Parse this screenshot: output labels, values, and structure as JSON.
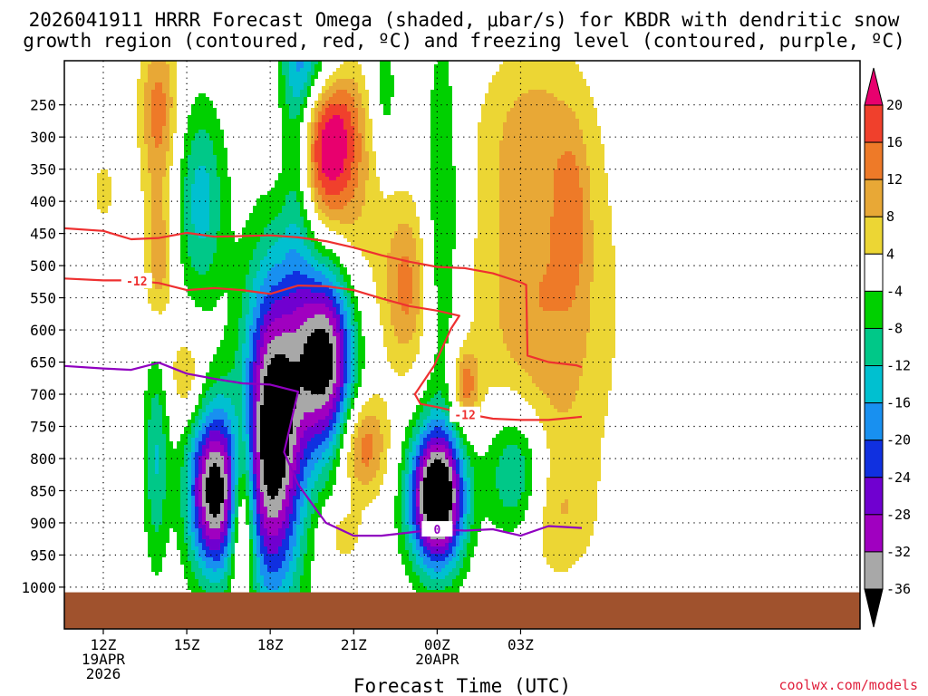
{
  "chart_data": {
    "type": "heatmap",
    "title_lines": [
      "2026041911 HRRR Forecast Omega (shaded, μbar/s) for KBDR with dendritic snow",
      "growth region (contoured, red, ºC) and freezing level (contoured, purple, ºC)"
    ],
    "xlabel": "Forecast Time (UTC)",
    "credit": "coolwx.com/models",
    "x_range_hours": [
      10.6,
      39.2
    ],
    "y_range_hPa": [
      180,
      1025
    ],
    "x_ticks": [
      {
        "hour": 12,
        "lines": [
          "12Z",
          "19APR",
          "2026"
        ]
      },
      {
        "hour": 15,
        "lines": [
          "15Z"
        ]
      },
      {
        "hour": 18,
        "lines": [
          "18Z"
        ]
      },
      {
        "hour": 21,
        "lines": [
          "21Z"
        ]
      },
      {
        "hour": 24,
        "lines": [
          "00Z",
          "20APR"
        ]
      },
      {
        "hour": 27,
        "lines": [
          "03Z"
        ]
      }
    ],
    "y_ticks": [
      250,
      300,
      350,
      400,
      450,
      500,
      550,
      600,
      650,
      700,
      750,
      800,
      850,
      900,
      950,
      1000
    ],
    "surface_hPa": 1008,
    "colorbar": {
      "labels": [
        "20",
        "16",
        "12",
        "8",
        "4",
        "-4",
        "-8",
        "-12",
        "-16",
        "-20",
        "-24",
        "-28",
        "-32",
        "-36"
      ],
      "bins": [
        {
          "min": 20,
          "max": 24,
          "color": "#e8006e"
        },
        {
          "min": 16,
          "max": 20,
          "color": "#f0402c"
        },
        {
          "min": 12,
          "max": 16,
          "color": "#ee7a28"
        },
        {
          "min": 8,
          "max": 12,
          "color": "#e8a836"
        },
        {
          "min": 4,
          "max": 8,
          "color": "#ecd634"
        },
        {
          "min": -4,
          "max": 4,
          "color": "#ffffff"
        },
        {
          "min": -8,
          "max": -4,
          "color": "#00d000"
        },
        {
          "min": -12,
          "max": -8,
          "color": "#00c888"
        },
        {
          "min": -16,
          "max": -12,
          "color": "#00c0d0"
        },
        {
          "min": -20,
          "max": -16,
          "color": "#1890f0"
        },
        {
          "min": -24,
          "max": -20,
          "color": "#1030e0"
        },
        {
          "min": -28,
          "max": -24,
          "color": "#7000d0"
        },
        {
          "min": -32,
          "max": -28,
          "color": "#a000c0"
        },
        {
          "min": -36,
          "max": -32,
          "color": "#a8a8a8"
        },
        {
          "min": -40,
          "max": -36,
          "color": "#000000"
        }
      ]
    },
    "omega_cells": [
      {
        "t": 14.0,
        "p": 260,
        "rt": 0.7,
        "rp": 130,
        "peak": 14
      },
      {
        "t": 14.0,
        "p": 490,
        "rt": 0.55,
        "rp": 110,
        "peak": 11
      },
      {
        "t": 12.0,
        "p": 385,
        "rt": 0.45,
        "rp": 55,
        "peak": 6
      },
      {
        "t": 15.0,
        "p": 675,
        "rt": 0.6,
        "rp": 70,
        "peak": 9
      },
      {
        "t": 15.5,
        "p": 400,
        "rt": 0.9,
        "rp": 150,
        "peak": -14
      },
      {
        "t": 13.9,
        "p": 800,
        "rt": 0.45,
        "rp": 170,
        "peak": -12
      },
      {
        "t": 16.0,
        "p": 850,
        "rt": 0.95,
        "rp": 130,
        "peak": -39
      },
      {
        "t": 17.0,
        "p": 880,
        "rt": 0.45,
        "rp": 150,
        "peak": 22
      },
      {
        "t": 18.1,
        "p": 760,
        "rt": 1.1,
        "rp": 250,
        "peak": -42
      },
      {
        "t": 19.0,
        "p": 300,
        "rt": 0.6,
        "rp": 220,
        "peak": -14
      },
      {
        "t": 19.6,
        "p": 185,
        "rt": 1.1,
        "rp": 80,
        "peak": -12
      },
      {
        "t": 20.0,
        "p": 645,
        "rt": 1.1,
        "rp": 150,
        "peak": -40
      },
      {
        "t": 20.0,
        "p": 320,
        "rt": 1.2,
        "rp": 120,
        "peak": 22
      },
      {
        "t": 21.0,
        "p": 480,
        "rt": 1.2,
        "rp": 230,
        "peak": 6
      },
      {
        "t": 20.6,
        "p": 240,
        "rt": 0.9,
        "rp": 80,
        "peak": 5
      },
      {
        "t": 21.3,
        "p": 780,
        "rt": 0.9,
        "rp": 80,
        "peak": 16
      },
      {
        "t": 20.6,
        "p": 920,
        "rt": 0.8,
        "rp": 50,
        "peak": 6
      },
      {
        "t": 22.1,
        "p": 230,
        "rt": 0.5,
        "rp": 100,
        "peak": -7
      },
      {
        "t": 22.9,
        "p": 530,
        "rt": 0.8,
        "rp": 130,
        "peak": 13
      },
      {
        "t": 24.2,
        "p": 440,
        "rt": 0.7,
        "rp": 330,
        "peak": -9
      },
      {
        "t": 24.0,
        "p": 860,
        "rt": 1.0,
        "rp": 110,
        "peak": -46
      },
      {
        "t": 25.0,
        "p": 690,
        "rt": 0.5,
        "rp": 60,
        "peak": 14
      },
      {
        "t": 26.8,
        "p": 820,
        "rt": 1.1,
        "rp": 110,
        "peak": -17
      },
      {
        "t": 27.8,
        "p": 560,
        "rt": 2.5,
        "rp": 330,
        "peak": 12
      },
      {
        "t": 28.9,
        "p": 420,
        "rt": 0.55,
        "rp": 130,
        "peak": 6
      },
      {
        "t": 28.3,
        "p": 890,
        "rt": 1.3,
        "rp": 90,
        "peak": 5
      },
      {
        "t": 27.4,
        "p": 290,
        "rt": 1.8,
        "rp": 120,
        "peak": 5
      }
    ],
    "contours": [
      {
        "name": "-12 upper",
        "color": "#ee3030",
        "points": [
          [
            10.6,
            442
          ],
          [
            12,
            446
          ],
          [
            13,
            459
          ],
          [
            14,
            457
          ],
          [
            15,
            449
          ],
          [
            16,
            455
          ],
          [
            17,
            454
          ],
          [
            18,
            453
          ],
          [
            19,
            456
          ],
          [
            20,
            462
          ],
          [
            21,
            472
          ],
          [
            22,
            484
          ],
          [
            23,
            494
          ],
          [
            24,
            502
          ],
          [
            25,
            504
          ],
          [
            26,
            512
          ],
          [
            27,
            526
          ],
          [
            27.2,
            530
          ],
          [
            27.25,
            640
          ],
          [
            28,
            650
          ],
          [
            29,
            655
          ],
          [
            29.2,
            658
          ]
        ]
      },
      {
        "name": "-12 lower",
        "color": "#ee3030",
        "label": "-12",
        "points": [
          [
            10.6,
            520
          ],
          [
            12,
            523
          ],
          [
            13,
            523
          ],
          [
            14,
            527
          ],
          [
            15,
            538
          ],
          [
            16,
            535
          ],
          [
            17,
            538
          ],
          [
            18,
            544
          ],
          [
            19,
            531
          ],
          [
            20,
            532
          ],
          [
            21,
            538
          ],
          [
            22,
            551
          ],
          [
            23,
            563
          ],
          [
            24,
            570
          ],
          [
            24.8,
            578
          ],
          [
            24.5,
            598
          ],
          [
            23.9,
            655
          ],
          [
            23.2,
            700
          ],
          [
            23.4,
            715
          ],
          [
            24,
            720
          ],
          [
            25,
            730
          ],
          [
            26,
            738
          ],
          [
            27,
            740
          ],
          [
            28,
            740
          ],
          [
            29.2,
            735
          ]
        ]
      },
      {
        "name": "freezing level",
        "color": "#9000c0",
        "label": "0",
        "points": [
          [
            10.6,
            656
          ],
          [
            12,
            660
          ],
          [
            13,
            662
          ],
          [
            14,
            651
          ],
          [
            15,
            668
          ],
          [
            16,
            676
          ],
          [
            17,
            683
          ],
          [
            18,
            685
          ],
          [
            19,
            696
          ],
          [
            18.5,
            790
          ],
          [
            19,
            840
          ],
          [
            19.5,
            870
          ],
          [
            20,
            900
          ],
          [
            21,
            920
          ],
          [
            22,
            920
          ],
          [
            23,
            915
          ],
          [
            24,
            910
          ],
          [
            25,
            912
          ],
          [
            26,
            910
          ],
          [
            27,
            920
          ],
          [
            28,
            905
          ],
          [
            29.2,
            908
          ]
        ]
      }
    ]
  }
}
